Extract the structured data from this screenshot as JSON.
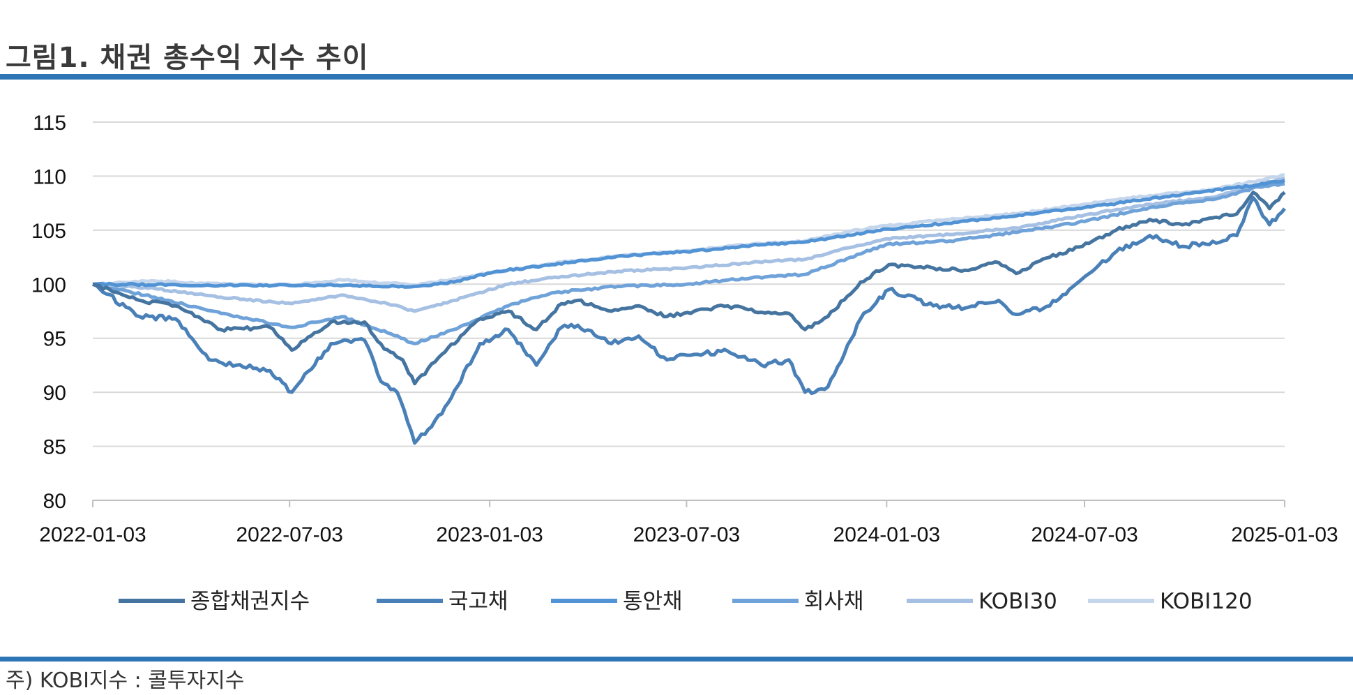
{
  "title": "그림1. 채권 총수익 지수 추이",
  "note": "주) KOBI지수 : 콜투자지수",
  "chart_data": {
    "type": "line",
    "ylim": [
      80,
      115
    ],
    "yticks": [
      80,
      85,
      90,
      95,
      100,
      105,
      110,
      115
    ],
    "xlim": [
      "2022-01-03",
      "2025-01-03"
    ],
    "xticks": [
      "2022-01-03",
      "2022-07-03",
      "2023-01-03",
      "2023-07-03",
      "2024-01-03",
      "2024-07-03",
      "2025-01-03"
    ],
    "grid": true,
    "legend": "bottom",
    "series": [
      {
        "name": "종합채권지수",
        "color": "#44749f",
        "x": [
          "2022-01-03",
          "2022-02-15",
          "2022-03-20",
          "2022-05-01",
          "2022-06-15",
          "2022-07-05",
          "2022-08-10",
          "2022-09-10",
          "2022-09-28",
          "2022-10-15",
          "2022-10-26",
          "2022-11-20",
          "2022-12-25",
          "2023-01-20",
          "2023-02-15",
          "2023-03-10",
          "2023-03-25",
          "2023-04-25",
          "2023-05-20",
          "2023-06-15",
          "2023-07-10",
          "2023-08-10",
          "2023-09-10",
          "2023-10-05",
          "2023-10-20",
          "2023-11-10",
          "2023-12-10",
          "2024-01-05",
          "2024-02-15",
          "2024-03-15",
          "2024-04-15",
          "2024-05-01",
          "2024-06-01",
          "2024-07-01",
          "2024-08-01",
          "2024-09-01",
          "2024-10-01",
          "2024-11-01",
          "2024-11-20",
          "2024-12-05",
          "2024-12-20",
          "2025-01-03"
        ],
        "y": [
          100,
          98.5,
          98.0,
          95.8,
          96.0,
          93.9,
          96.5,
          96.5,
          94.0,
          93.0,
          90.8,
          93.5,
          96.8,
          97.5,
          95.8,
          98.2,
          98.5,
          97.5,
          98.0,
          97.0,
          97.5,
          98.0,
          97.4,
          97.3,
          95.8,
          97.0,
          100.2,
          101.8,
          101.5,
          101.3,
          102.0,
          101.0,
          102.5,
          103.5,
          105.0,
          106.0,
          105.5,
          106.2,
          106.5,
          108.5,
          107.0,
          108.5
        ]
      },
      {
        "name": "국고채",
        "color": "#4a80b8",
        "x": [
          "2022-01-03",
          "2022-02-15",
          "2022-03-20",
          "2022-04-20",
          "2022-05-15",
          "2022-06-15",
          "2022-07-05",
          "2022-08-10",
          "2022-09-10",
          "2022-09-25",
          "2022-10-10",
          "2022-10-26",
          "2022-11-20",
          "2022-12-25",
          "2023-01-20",
          "2023-02-15",
          "2023-03-10",
          "2023-03-25",
          "2023-04-25",
          "2023-05-20",
          "2023-06-15",
          "2023-07-10",
          "2023-08-10",
          "2023-09-10",
          "2023-10-05",
          "2023-10-20",
          "2023-11-10",
          "2023-12-10",
          "2024-01-05",
          "2024-02-15",
          "2024-03-15",
          "2024-04-15",
          "2024-05-01",
          "2024-06-01",
          "2024-07-01",
          "2024-08-01",
          "2024-09-01",
          "2024-10-01",
          "2024-11-01",
          "2024-11-20",
          "2024-12-05",
          "2024-12-20",
          "2025-01-03"
        ],
        "y": [
          100,
          97.0,
          96.8,
          93.0,
          92.5,
          92.0,
          90.0,
          94.5,
          94.8,
          91.0,
          90.0,
          85.3,
          88.0,
          94.5,
          95.8,
          92.5,
          96.0,
          96.2,
          94.5,
          95.2,
          93.0,
          93.5,
          93.8,
          92.5,
          93.0,
          90.0,
          90.5,
          96.8,
          99.5,
          98.0,
          97.8,
          98.5,
          97.2,
          98.0,
          100.5,
          103.0,
          104.5,
          103.5,
          103.8,
          104.5,
          108.0,
          105.5,
          107.0
        ]
      },
      {
        "name": "통안채",
        "color": "#5193d4",
        "x": [
          "2022-01-03",
          "2022-05-01",
          "2022-08-01",
          "2022-10-26",
          "2022-12-01",
          "2023-01-10",
          "2023-03-01",
          "2023-05-01",
          "2023-07-03",
          "2023-09-01",
          "2023-10-20",
          "2024-01-03",
          "2024-04-01",
          "2024-07-03",
          "2024-10-01",
          "2024-12-10",
          "2025-01-03"
        ],
        "y": [
          100,
          99.9,
          99.9,
          99.8,
          100.2,
          101.2,
          101.8,
          102.6,
          103.0,
          103.6,
          103.9,
          105.1,
          106.0,
          107.1,
          108.3,
          109.2,
          109.6
        ]
      },
      {
        "name": "회사채",
        "color": "#6fa2d8",
        "x": [
          "2022-01-03",
          "2022-03-01",
          "2022-05-01",
          "2022-07-05",
          "2022-08-20",
          "2022-10-01",
          "2022-10-26",
          "2022-12-01",
          "2023-01-20",
          "2023-03-01",
          "2023-05-01",
          "2023-07-03",
          "2023-09-01",
          "2023-10-20",
          "2023-12-01",
          "2024-01-03",
          "2024-03-01",
          "2024-05-01",
          "2024-07-03",
          "2024-09-01",
          "2024-11-01",
          "2024-12-10",
          "2025-01-03"
        ],
        "y": [
          100,
          98.8,
          97.3,
          96.0,
          97.0,
          95.5,
          94.5,
          95.8,
          98.0,
          99.2,
          99.8,
          100.0,
          100.6,
          100.9,
          102.5,
          103.7,
          104.0,
          104.8,
          105.8,
          107.1,
          107.9,
          109.0,
          109.3
        ]
      },
      {
        "name": "KOBI30",
        "color": "#a5c0e3",
        "x": [
          "2022-01-03",
          "2022-03-01",
          "2022-05-01",
          "2022-07-05",
          "2022-08-20",
          "2022-10-01",
          "2022-10-26",
          "2022-12-01",
          "2023-01-20",
          "2023-03-01",
          "2023-05-01",
          "2023-07-03",
          "2023-09-01",
          "2023-10-20",
          "2023-12-01",
          "2024-01-03",
          "2024-03-01",
          "2024-05-01",
          "2024-07-03",
          "2024-09-01",
          "2024-11-01",
          "2024-12-10",
          "2025-01-03"
        ],
        "y": [
          100,
          99.6,
          98.8,
          98.2,
          99.0,
          98.2,
          97.5,
          98.5,
          100.0,
          100.6,
          101.2,
          101.5,
          102.0,
          102.3,
          103.4,
          104.2,
          104.6,
          105.2,
          106.4,
          107.4,
          108.1,
          109.2,
          109.8
        ]
      },
      {
        "name": "KOBI120",
        "color": "#c5d6ec",
        "x": [
          "2022-01-03",
          "2022-03-01",
          "2022-05-01",
          "2022-07-05",
          "2022-08-20",
          "2022-10-01",
          "2022-10-26",
          "2022-12-01",
          "2023-01-20",
          "2023-03-01",
          "2023-05-01",
          "2023-07-03",
          "2023-09-01",
          "2023-10-20",
          "2023-12-01",
          "2024-01-03",
          "2024-03-01",
          "2024-05-01",
          "2024-07-03",
          "2024-09-01",
          "2024-11-01",
          "2024-12-10",
          "2025-01-03"
        ],
        "y": [
          100,
          100.3,
          100.0,
          99.9,
          100.4,
          100.1,
          99.9,
          100.5,
          101.3,
          101.9,
          102.6,
          103.1,
          103.7,
          104.0,
          104.9,
          105.4,
          106.0,
          106.5,
          107.4,
          108.2,
          108.8,
          109.6,
          110.1
        ]
      }
    ]
  }
}
